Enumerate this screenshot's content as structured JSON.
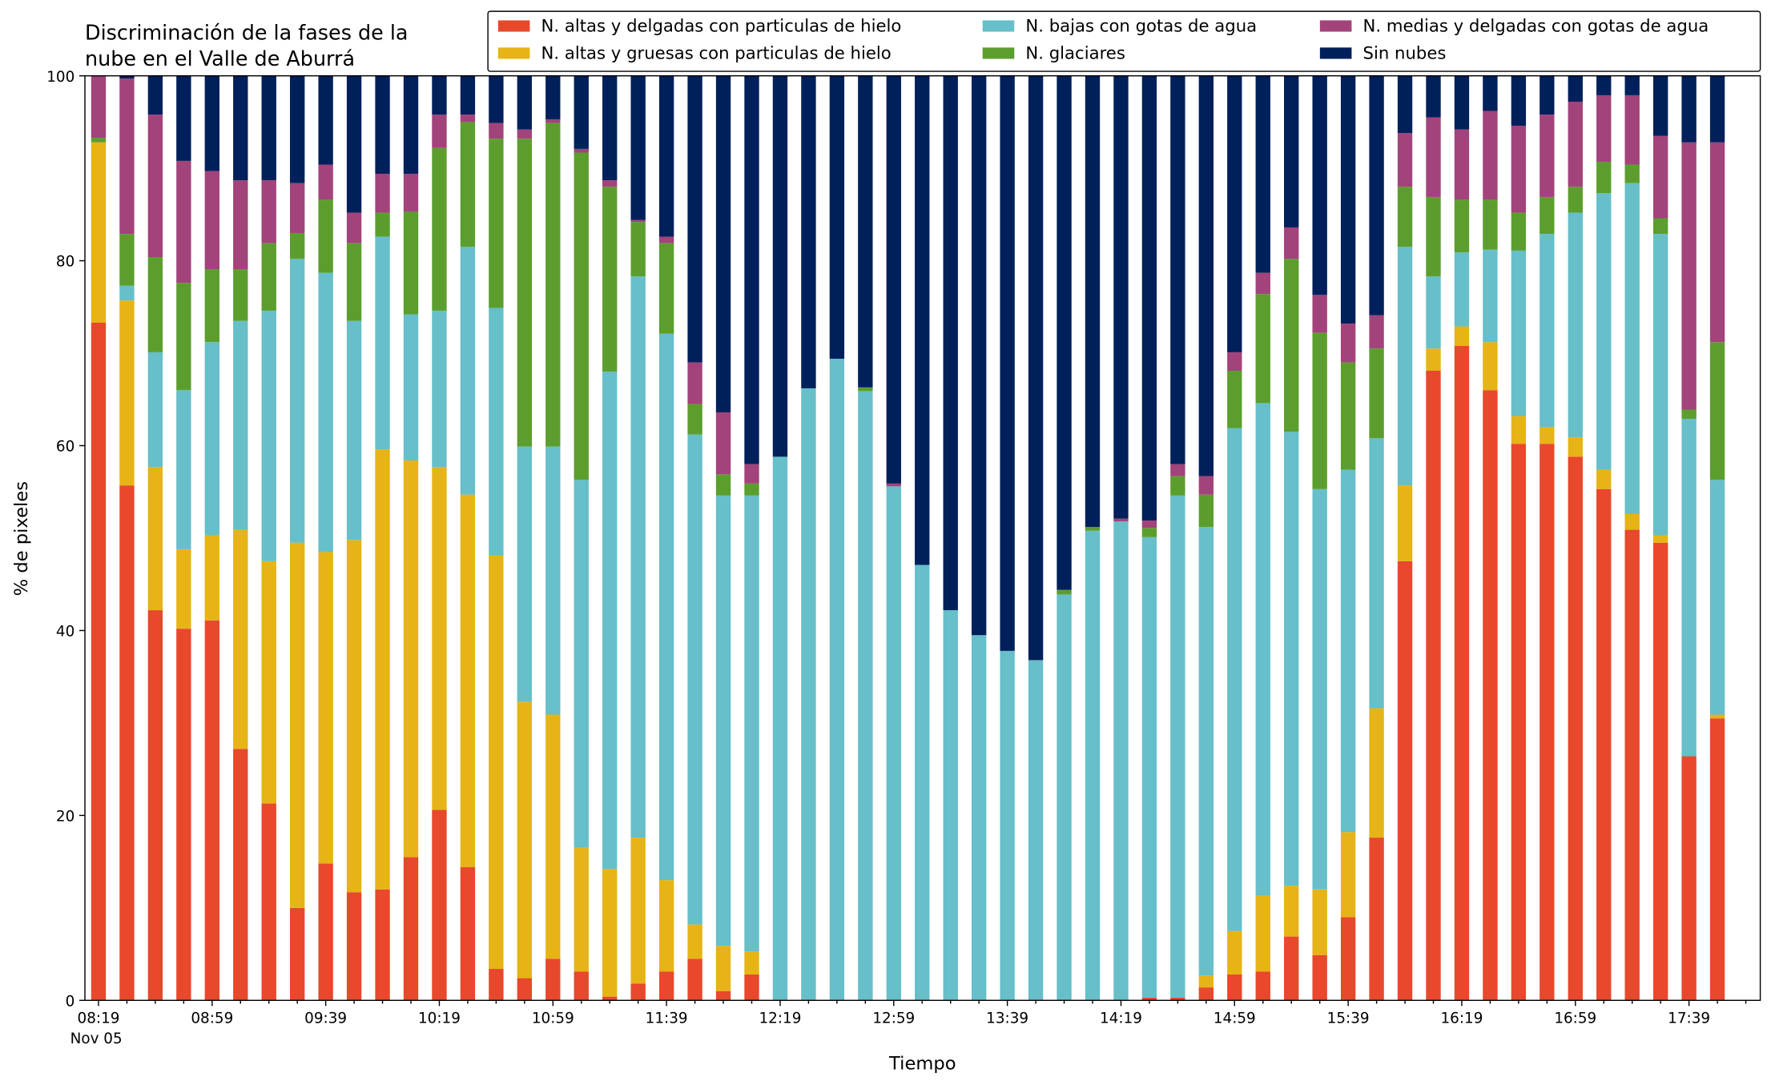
{
  "chart_data": {
    "type": "stacked_bar",
    "title": [
      "Discriminación de la fases de la",
      "nube en el Valle de Aburrá"
    ],
    "xlabel": "Tiempo",
    "ylabel": "% de pixeles",
    "date_label": "Nov 05",
    "categories": [
      "08:19",
      null,
      null,
      null,
      "08:59",
      null,
      null,
      null,
      "09:39",
      null,
      null,
      null,
      "10:19",
      null,
      null,
      null,
      "10:59",
      null,
      null,
      null,
      "11:39",
      null,
      null,
      null,
      "12:19",
      null,
      null,
      null,
      "12:59",
      null,
      null,
      null,
      "13:39",
      null,
      null,
      null,
      "14:19",
      null,
      null,
      null,
      "14:59",
      null,
      null,
      null,
      "15:39",
      null,
      null,
      null,
      "16:19",
      null,
      null,
      null,
      "16:59",
      null,
      null,
      null,
      "17:39",
      null
    ],
    "ylim": [
      0,
      100
    ],
    "yticks": [
      0,
      20,
      40,
      60,
      80,
      100
    ],
    "legend": "upper right",
    "series": [
      {
        "name": "N. altas y delgadas con particulas de hielo",
        "color": "#e8482c",
        "values": [
          73.3,
          55.7,
          42.2,
          40.2,
          41.1,
          27.2,
          21.3,
          10.0,
          14.8,
          11.7,
          12.0,
          15.5,
          20.6,
          14.4,
          3.4,
          2.4,
          4.5,
          3.1,
          0.4,
          1.8,
          3.1,
          4.5,
          1.0,
          2.8,
          0,
          0,
          0,
          0,
          0,
          0,
          0,
          0,
          0,
          0,
          0,
          0,
          0,
          0.3,
          0.3,
          1.4,
          2.8,
          3.1,
          6.9,
          4.9,
          9.0,
          17.6,
          47.5,
          68.1,
          70.8,
          66.0,
          60.2,
          60.2,
          58.8,
          55.3,
          50.9,
          49.5,
          26.4,
          30.5
        ]
      },
      {
        "name": "N. altas y gruesas con particulas de hielo",
        "color": "#e6b416",
        "values": [
          19.5,
          20.0,
          15.5,
          8.6,
          9.2,
          23.7,
          26.2,
          39.5,
          33.7,
          38.1,
          47.6,
          42.9,
          37.1,
          40.3,
          44.7,
          29.9,
          26.4,
          13.4,
          13.8,
          15.8,
          9.9,
          3.7,
          4.9,
          2.5,
          0,
          0,
          0,
          0,
          0,
          0,
          0,
          0,
          0,
          0,
          0,
          0,
          0,
          0,
          0,
          1.3,
          4.7,
          8.2,
          5.5,
          7.1,
          9.2,
          14.0,
          8.2,
          2.4,
          2.1,
          5.2,
          3.0,
          1.8,
          2.1,
          2.1,
          1.7,
          0.8,
          0,
          0.4
        ]
      },
      {
        "name": "N. bajas con gotas de agua",
        "color": "#66bfc9",
        "values": [
          0,
          1.6,
          12.4,
          17.2,
          20.9,
          22.6,
          27.1,
          30.7,
          30.2,
          23.7,
          23.0,
          15.8,
          16.9,
          26.8,
          26.8,
          27.6,
          29.0,
          39.8,
          53.8,
          60.7,
          59.1,
          53.0,
          48.7,
          49.3,
          58.8,
          66.2,
          69.4,
          65.9,
          55.6,
          47.1,
          42.2,
          39.5,
          37.8,
          36.8,
          43.9,
          50.8,
          51.8,
          49.8,
          54.3,
          48.5,
          54.4,
          53.3,
          49.1,
          43.3,
          39.2,
          29.2,
          25.8,
          7.8,
          8.0,
          10.0,
          17.9,
          20.9,
          24.3,
          29.9,
          35.8,
          32.6,
          36.5,
          25.4
        ]
      },
      {
        "name": "N. glaciares",
        "color": "#5c9e2e",
        "values": [
          0.5,
          5.6,
          10.3,
          11.6,
          7.9,
          5.6,
          7.3,
          2.8,
          7.9,
          8.4,
          2.6,
          11.1,
          17.6,
          13.5,
          18.3,
          33.3,
          35.0,
          35.4,
          20.0,
          5.9,
          9.8,
          3.3,
          2.3,
          1.3,
          0,
          0,
          0,
          0.4,
          0,
          0,
          0,
          0,
          0,
          0,
          0.5,
          0.4,
          0,
          1.0,
          2.1,
          3.5,
          6.2,
          11.8,
          18.7,
          16.9,
          11.6,
          9.7,
          6.5,
          8.6,
          5.7,
          5.4,
          4.1,
          4.0,
          2.8,
          3.4,
          2.0,
          1.7,
          1.0,
          14.9
        ]
      },
      {
        "name": "N. medias y delgadas con gotas de agua",
        "color": "#a2437b",
        "values": [
          6.7,
          16.8,
          15.4,
          13.2,
          10.6,
          9.6,
          6.8,
          5.4,
          3.8,
          3.3,
          4.2,
          4.1,
          3.6,
          0.8,
          1.7,
          1.0,
          0.4,
          0.4,
          0.7,
          0.2,
          0.7,
          4.5,
          6.7,
          2.1,
          0,
          0,
          0,
          0,
          0.3,
          0,
          0,
          0,
          0,
          0,
          0,
          0,
          0.3,
          0.8,
          1.3,
          2.0,
          2.0,
          2.3,
          3.4,
          4.1,
          4.2,
          3.6,
          5.8,
          8.6,
          7.6,
          9.6,
          9.4,
          8.9,
          9.2,
          7.2,
          7.5,
          8.9,
          28.9,
          21.6
        ]
      },
      {
        "name": "Sin nubes",
        "color": "#00205b",
        "values": [
          0,
          0.3,
          4.2,
          9.2,
          10.3,
          11.3,
          11.3,
          11.6,
          9.6,
          14.8,
          10.6,
          10.6,
          4.2,
          4.2,
          5.1,
          5.8,
          4.7,
          7.9,
          11.3,
          15.6,
          17.4,
          31.0,
          36.4,
          42.0,
          41.2,
          33.8,
          30.6,
          33.7,
          44.1,
          52.9,
          57.8,
          60.5,
          62.2,
          63.2,
          55.6,
          48.8,
          47.9,
          48.1,
          42.0,
          43.3,
          29.9,
          21.3,
          16.4,
          23.7,
          26.8,
          25.9,
          6.2,
          4.5,
          5.8,
          3.8,
          5.4,
          4.2,
          2.8,
          2.1,
          2.1,
          6.5,
          7.2,
          7.2
        ]
      }
    ]
  }
}
